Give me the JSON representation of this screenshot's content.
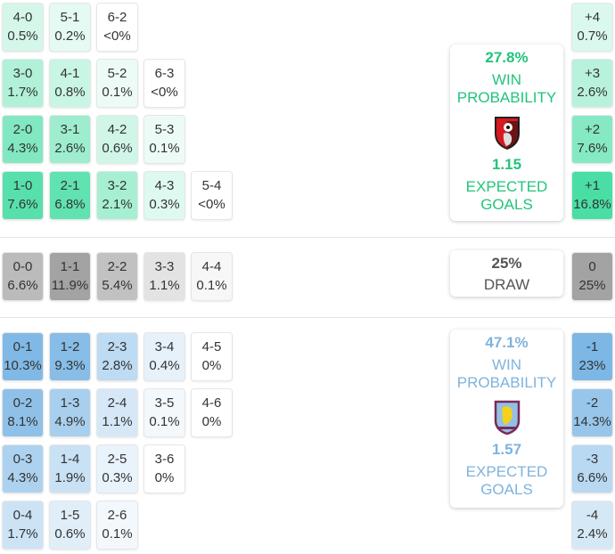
{
  "colors": {
    "home": "#22c47a",
    "away": "#7fb3dc",
    "home_cell": "#3fdca0",
    "away_cell": "#6fb0e2",
    "draw_cell": "#9e9e9e"
  },
  "home_rows": [
    [
      {
        "score": "4-0",
        "pct": "0.5%",
        "v": 0.5
      },
      {
        "score": "5-1",
        "pct": "0.2%",
        "v": 0.2
      },
      {
        "score": "6-2",
        "pct": "<0%",
        "v": 0
      }
    ],
    [
      {
        "score": "3-0",
        "pct": "1.7%",
        "v": 1.7
      },
      {
        "score": "4-1",
        "pct": "0.8%",
        "v": 0.8
      },
      {
        "score": "5-2",
        "pct": "0.1%",
        "v": 0.1
      },
      {
        "score": "6-3",
        "pct": "<0%",
        "v": 0
      }
    ],
    [
      {
        "score": "2-0",
        "pct": "4.3%",
        "v": 4.3
      },
      {
        "score": "3-1",
        "pct": "2.6%",
        "v": 2.6
      },
      {
        "score": "4-2",
        "pct": "0.6%",
        "v": 0.6
      },
      {
        "score": "5-3",
        "pct": "0.1%",
        "v": 0.1
      }
    ],
    [
      {
        "score": "1-0",
        "pct": "7.6%",
        "v": 7.6
      },
      {
        "score": "2-1",
        "pct": "6.8%",
        "v": 6.8
      },
      {
        "score": "3-2",
        "pct": "2.1%",
        "v": 2.1
      },
      {
        "score": "4-3",
        "pct": "0.3%",
        "v": 0.3
      },
      {
        "score": "5-4",
        "pct": "<0%",
        "v": 0
      }
    ]
  ],
  "draw_row": [
    {
      "score": "0-0",
      "pct": "6.6%",
      "v": 6.6
    },
    {
      "score": "1-1",
      "pct": "11.9%",
      "v": 11.9
    },
    {
      "score": "2-2",
      "pct": "5.4%",
      "v": 5.4
    },
    {
      "score": "3-3",
      "pct": "1.1%",
      "v": 1.1
    },
    {
      "score": "4-4",
      "pct": "0.1%",
      "v": 0.1
    }
  ],
  "away_rows": [
    [
      {
        "score": "0-1",
        "pct": "10.3%",
        "v": 10.3
      },
      {
        "score": "1-2",
        "pct": "9.3%",
        "v": 9.3
      },
      {
        "score": "2-3",
        "pct": "2.8%",
        "v": 2.8
      },
      {
        "score": "3-4",
        "pct": "0.4%",
        "v": 0.4
      },
      {
        "score": "4-5",
        "pct": "0%",
        "v": 0
      }
    ],
    [
      {
        "score": "0-2",
        "pct": "8.1%",
        "v": 8.1
      },
      {
        "score": "1-3",
        "pct": "4.9%",
        "v": 4.9
      },
      {
        "score": "2-4",
        "pct": "1.1%",
        "v": 1.1
      },
      {
        "score": "3-5",
        "pct": "0.1%",
        "v": 0.1
      },
      {
        "score": "4-6",
        "pct": "0%",
        "v": 0
      }
    ],
    [
      {
        "score": "0-3",
        "pct": "4.3%",
        "v": 4.3
      },
      {
        "score": "1-4",
        "pct": "1.9%",
        "v": 1.9
      },
      {
        "score": "2-5",
        "pct": "0.3%",
        "v": 0.3
      },
      {
        "score": "3-6",
        "pct": "0%",
        "v": 0
      }
    ],
    [
      {
        "score": "0-4",
        "pct": "1.7%",
        "v": 1.7
      },
      {
        "score": "1-5",
        "pct": "0.6%",
        "v": 0.6
      },
      {
        "score": "2-6",
        "pct": "0.1%",
        "v": 0.1
      }
    ]
  ],
  "home_margins": [
    {
      "score": "+4",
      "pct": "0.7%",
      "v": 0.7
    },
    {
      "score": "+3",
      "pct": "2.6%",
      "v": 2.6
    },
    {
      "score": "+2",
      "pct": "7.6%",
      "v": 7.6
    },
    {
      "score": "+1",
      "pct": "16.8%",
      "v": 16.8
    }
  ],
  "draw_margin": {
    "score": "0",
    "pct": "25%",
    "v": 25
  },
  "away_margins": [
    {
      "score": "-1",
      "pct": "23%",
      "v": 23
    },
    {
      "score": "-2",
      "pct": "14.3%",
      "v": 14.3
    },
    {
      "score": "-3",
      "pct": "6.6%",
      "v": 6.6
    },
    {
      "score": "-4",
      "pct": "2.4%",
      "v": 2.4
    }
  ],
  "home_card": {
    "win_pct": "27.8%",
    "win_label_1": "WIN",
    "win_label_2": "PROBABILITY",
    "xg": "1.15",
    "xg_label_1": "EXPECTED",
    "xg_label_2": "GOALS",
    "crest": "bournemouth-crest"
  },
  "draw_card": {
    "pct": "25%",
    "label": "DRAW"
  },
  "away_card": {
    "win_pct": "47.1%",
    "win_label_1": "WIN",
    "win_label_2": "PROBABILITY",
    "xg": "1.57",
    "xg_label_1": "EXPECTED",
    "xg_label_2": "GOALS",
    "crest": "aston-villa-crest"
  }
}
